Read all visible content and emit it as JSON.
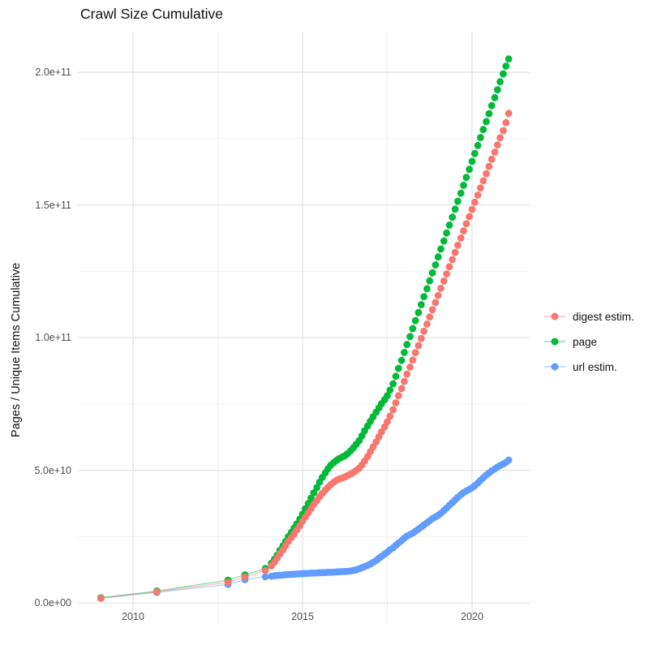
{
  "title": "Crawl Size Cumulative",
  "axes": {
    "y_label": "Pages / Unique Items Cumulative",
    "x_ticks": [
      "2010",
      "2015",
      "2020"
    ],
    "y_ticks": [
      "0.0e+00",
      "5.0e+10",
      "1.0e+11",
      "1.5e+11",
      "2.0e+11"
    ]
  },
  "legend": {
    "entries": [
      {
        "label": "digest estim.",
        "color": "#F8766D"
      },
      {
        "label": "page",
        "color": "#00BA38"
      },
      {
        "label": "url estim.",
        "color": "#619CFF"
      }
    ]
  },
  "chart_data": {
    "type": "scatter",
    "title": "Crawl Size Cumulative",
    "xlabel": "",
    "ylabel": "Pages / Unique Items Cumulative",
    "values_unit": "1e9 pages (billions)",
    "xlim": [
      2008.37,
      2021.7
    ],
    "ylim_billions": [
      -7.6,
      215.3
    ],
    "x_tick_values": [
      2010,
      2015,
      2020
    ],
    "y_tick_values_billions": [
      0,
      50,
      100,
      150,
      200
    ],
    "y_tick_labels": [
      "0.0e+00",
      "5.0e+10",
      "1.0e+11",
      "1.5e+11",
      "2.0e+11"
    ],
    "grid": "major+minor",
    "legend_position": "right",
    "draw_order": [
      "page",
      "url estim.",
      "digest estim."
    ],
    "series": [
      {
        "name": "digest estim.",
        "color": "#F8766D",
        "points": [
          [
            2009.05,
            1.8
          ],
          [
            2010.7,
            4.2
          ],
          [
            2012.8,
            7.8
          ],
          [
            2013.3,
            9.8
          ],
          [
            2013.9,
            12.2
          ],
          [
            2014.08,
            14.0
          ],
          [
            2014.17,
            15.4
          ],
          [
            2014.25,
            16.9
          ],
          [
            2014.33,
            18.5
          ],
          [
            2014.42,
            20.0
          ],
          [
            2014.5,
            21.6
          ],
          [
            2014.58,
            23.2
          ],
          [
            2014.67,
            24.6
          ],
          [
            2014.75,
            26.0
          ],
          [
            2014.83,
            27.5
          ],
          [
            2014.92,
            29.1
          ],
          [
            2015.0,
            30.8
          ],
          [
            2015.08,
            32.4
          ],
          [
            2015.17,
            34.0
          ],
          [
            2015.25,
            35.6
          ],
          [
            2015.33,
            37.1
          ],
          [
            2015.42,
            38.6
          ],
          [
            2015.5,
            40.0
          ],
          [
            2015.58,
            41.3
          ],
          [
            2015.67,
            42.5
          ],
          [
            2015.75,
            43.6
          ],
          [
            2015.83,
            44.6
          ],
          [
            2015.92,
            45.5
          ],
          [
            2016.0,
            46.2
          ],
          [
            2016.08,
            46.7
          ],
          [
            2016.17,
            47.1
          ],
          [
            2016.25,
            47.5
          ],
          [
            2016.33,
            48.0
          ],
          [
            2016.42,
            48.6
          ],
          [
            2016.5,
            49.2
          ],
          [
            2016.58,
            49.9
          ],
          [
            2016.67,
            50.8
          ],
          [
            2016.75,
            52.0
          ],
          [
            2016.83,
            53.5
          ],
          [
            2016.92,
            55.2
          ],
          [
            2017.0,
            57.0
          ],
          [
            2017.08,
            58.8
          ],
          [
            2017.17,
            60.7
          ],
          [
            2017.25,
            62.6
          ],
          [
            2017.33,
            64.5
          ],
          [
            2017.42,
            66.4
          ],
          [
            2017.5,
            68.3
          ],
          [
            2017.58,
            70.4
          ],
          [
            2017.67,
            72.8
          ],
          [
            2017.75,
            75.4
          ],
          [
            2017.83,
            78.1
          ],
          [
            2017.92,
            80.8
          ],
          [
            2018.0,
            83.5
          ],
          [
            2018.08,
            86.2
          ],
          [
            2018.17,
            88.9
          ],
          [
            2018.25,
            91.6
          ],
          [
            2018.33,
            94.3
          ],
          [
            2018.42,
            97.0
          ],
          [
            2018.5,
            99.7
          ],
          [
            2018.58,
            102.4
          ],
          [
            2018.67,
            105.1
          ],
          [
            2018.75,
            107.8
          ],
          [
            2018.83,
            110.5
          ],
          [
            2018.92,
            113.2
          ],
          [
            2019.0,
            115.9
          ],
          [
            2019.08,
            118.6
          ],
          [
            2019.17,
            121.3
          ],
          [
            2019.25,
            124.0
          ],
          [
            2019.33,
            126.7
          ],
          [
            2019.42,
            129.4
          ],
          [
            2019.5,
            132.1
          ],
          [
            2019.58,
            134.8
          ],
          [
            2019.67,
            137.5
          ],
          [
            2019.75,
            140.2
          ],
          [
            2019.83,
            142.9
          ],
          [
            2019.92,
            145.6
          ],
          [
            2020.0,
            148.3
          ],
          [
            2020.08,
            151.0
          ],
          [
            2020.17,
            153.7
          ],
          [
            2020.25,
            156.4
          ],
          [
            2020.33,
            159.1
          ],
          [
            2020.42,
            161.8
          ],
          [
            2020.5,
            164.5
          ],
          [
            2020.58,
            167.2
          ],
          [
            2020.67,
            169.9
          ],
          [
            2020.75,
            172.6
          ],
          [
            2020.83,
            175.3
          ],
          [
            2020.92,
            178.0
          ],
          [
            2021.0,
            181.0
          ],
          [
            2021.08,
            184.5
          ]
        ]
      },
      {
        "name": "page",
        "color": "#00BA38",
        "points": [
          [
            2009.05,
            2.0
          ],
          [
            2010.7,
            4.5
          ],
          [
            2012.8,
            8.6
          ],
          [
            2013.3,
            10.6
          ],
          [
            2013.9,
            13.0
          ],
          [
            2014.08,
            15.0
          ],
          [
            2014.17,
            16.5
          ],
          [
            2014.25,
            18.0
          ],
          [
            2014.33,
            19.8
          ],
          [
            2014.42,
            21.5
          ],
          [
            2014.5,
            23.2
          ],
          [
            2014.58,
            25.0
          ],
          [
            2014.67,
            26.6
          ],
          [
            2014.75,
            28.2
          ],
          [
            2014.83,
            29.8
          ],
          [
            2014.92,
            31.6
          ],
          [
            2015.0,
            33.5
          ],
          [
            2015.08,
            35.5
          ],
          [
            2015.17,
            37.5
          ],
          [
            2015.25,
            39.5
          ],
          [
            2015.33,
            41.5
          ],
          [
            2015.42,
            43.5
          ],
          [
            2015.5,
            45.5
          ],
          [
            2015.58,
            47.3
          ],
          [
            2015.67,
            49.0
          ],
          [
            2015.75,
            50.6
          ],
          [
            2015.83,
            51.9
          ],
          [
            2015.92,
            52.9
          ],
          [
            2016.0,
            53.7
          ],
          [
            2016.08,
            54.4
          ],
          [
            2016.17,
            55.0
          ],
          [
            2016.25,
            55.5
          ],
          [
            2016.33,
            56.3
          ],
          [
            2016.42,
            57.4
          ],
          [
            2016.5,
            58.5
          ],
          [
            2016.58,
            59.8
          ],
          [
            2016.67,
            61.2
          ],
          [
            2016.75,
            63.0
          ],
          [
            2016.83,
            64.9
          ],
          [
            2016.92,
            66.7
          ],
          [
            2017.0,
            68.5
          ],
          [
            2017.08,
            70.2
          ],
          [
            2017.17,
            71.9
          ],
          [
            2017.25,
            73.5
          ],
          [
            2017.33,
            75.1
          ],
          [
            2017.42,
            76.6
          ],
          [
            2017.5,
            78.1
          ],
          [
            2017.58,
            80.2
          ],
          [
            2017.67,
            82.6
          ],
          [
            2017.75,
            85.4
          ],
          [
            2017.83,
            88.4
          ],
          [
            2017.92,
            91.4
          ],
          [
            2018.0,
            94.4
          ],
          [
            2018.08,
            97.4
          ],
          [
            2018.17,
            100.4
          ],
          [
            2018.25,
            103.4
          ],
          [
            2018.33,
            106.4
          ],
          [
            2018.42,
            109.4
          ],
          [
            2018.5,
            112.4
          ],
          [
            2018.58,
            115.4
          ],
          [
            2018.67,
            118.4
          ],
          [
            2018.75,
            121.4
          ],
          [
            2018.83,
            124.4
          ],
          [
            2018.92,
            127.4
          ],
          [
            2019.0,
            130.4
          ],
          [
            2019.08,
            133.4
          ],
          [
            2019.17,
            136.4
          ],
          [
            2019.25,
            139.4
          ],
          [
            2019.33,
            142.4
          ],
          [
            2019.42,
            145.4
          ],
          [
            2019.5,
            148.4
          ],
          [
            2019.58,
            151.4
          ],
          [
            2019.67,
            154.4
          ],
          [
            2019.75,
            157.4
          ],
          [
            2019.83,
            160.4
          ],
          [
            2019.92,
            163.4
          ],
          [
            2020.0,
            166.4
          ],
          [
            2020.08,
            169.4
          ],
          [
            2020.17,
            172.4
          ],
          [
            2020.25,
            175.4
          ],
          [
            2020.33,
            178.4
          ],
          [
            2020.42,
            181.4
          ],
          [
            2020.5,
            184.4
          ],
          [
            2020.58,
            187.4
          ],
          [
            2020.67,
            190.4
          ],
          [
            2020.75,
            193.4
          ],
          [
            2020.83,
            196.4
          ],
          [
            2020.92,
            199.4
          ],
          [
            2021.0,
            202.3
          ],
          [
            2021.08,
            205.0
          ]
        ]
      },
      {
        "name": "url estim.",
        "color": "#619CFF",
        "points": [
          [
            2009.05,
            1.8
          ],
          [
            2010.7,
            4.0
          ],
          [
            2012.8,
            7.0
          ],
          [
            2013.3,
            8.8
          ],
          [
            2013.9,
            9.9
          ],
          [
            2014.08,
            10.1
          ],
          [
            2014.17,
            10.25
          ],
          [
            2014.25,
            10.35
          ],
          [
            2014.33,
            10.45
          ],
          [
            2014.42,
            10.55
          ],
          [
            2014.5,
            10.65
          ],
          [
            2014.58,
            10.72
          ],
          [
            2014.67,
            10.8
          ],
          [
            2014.75,
            10.87
          ],
          [
            2014.83,
            10.93
          ],
          [
            2014.92,
            11.0
          ],
          [
            2015.0,
            11.05
          ],
          [
            2015.08,
            11.1
          ],
          [
            2015.17,
            11.17
          ],
          [
            2015.25,
            11.22
          ],
          [
            2015.33,
            11.28
          ],
          [
            2015.42,
            11.33
          ],
          [
            2015.5,
            11.38
          ],
          [
            2015.58,
            11.43
          ],
          [
            2015.67,
            11.48
          ],
          [
            2015.75,
            11.53
          ],
          [
            2015.83,
            11.58
          ],
          [
            2015.92,
            11.64
          ],
          [
            2016.0,
            11.7
          ],
          [
            2016.08,
            11.76
          ],
          [
            2016.17,
            11.82
          ],
          [
            2016.25,
            11.88
          ],
          [
            2016.33,
            11.95
          ],
          [
            2016.42,
            12.05
          ],
          [
            2016.5,
            12.2
          ],
          [
            2016.58,
            12.5
          ],
          [
            2016.67,
            12.9
          ],
          [
            2016.75,
            13.3
          ],
          [
            2016.83,
            13.7
          ],
          [
            2016.92,
            14.2
          ],
          [
            2017.0,
            14.7
          ],
          [
            2017.08,
            15.3
          ],
          [
            2017.17,
            16.0
          ],
          [
            2017.25,
            16.8
          ],
          [
            2017.33,
            17.6
          ],
          [
            2017.42,
            18.4
          ],
          [
            2017.5,
            19.2
          ],
          [
            2017.58,
            20.0
          ],
          [
            2017.67,
            20.8
          ],
          [
            2017.75,
            21.7
          ],
          [
            2017.83,
            22.6
          ],
          [
            2017.92,
            23.5
          ],
          [
            2018.0,
            24.4
          ],
          [
            2018.08,
            25.2
          ],
          [
            2018.17,
            25.8
          ],
          [
            2018.25,
            26.3
          ],
          [
            2018.33,
            27.0
          ],
          [
            2018.42,
            27.8
          ],
          [
            2018.5,
            28.6
          ],
          [
            2018.58,
            29.4
          ],
          [
            2018.67,
            30.2
          ],
          [
            2018.75,
            31.0
          ],
          [
            2018.83,
            31.8
          ],
          [
            2018.92,
            32.4
          ],
          [
            2019.0,
            33.0
          ],
          [
            2019.08,
            33.8
          ],
          [
            2019.17,
            34.8
          ],
          [
            2019.25,
            35.8
          ],
          [
            2019.33,
            36.8
          ],
          [
            2019.42,
            37.8
          ],
          [
            2019.5,
            38.8
          ],
          [
            2019.58,
            39.8
          ],
          [
            2019.67,
            40.8
          ],
          [
            2019.75,
            41.6
          ],
          [
            2019.83,
            42.2
          ],
          [
            2019.92,
            42.8
          ],
          [
            2020.0,
            43.4
          ],
          [
            2020.08,
            44.2
          ],
          [
            2020.17,
            45.2
          ],
          [
            2020.25,
            46.2
          ],
          [
            2020.33,
            47.2
          ],
          [
            2020.42,
            48.2
          ],
          [
            2020.5,
            49.0
          ],
          [
            2020.58,
            49.8
          ],
          [
            2020.67,
            50.5
          ],
          [
            2020.75,
            51.2
          ],
          [
            2020.83,
            51.8
          ],
          [
            2020.92,
            52.4
          ],
          [
            2021.0,
            53.0
          ],
          [
            2021.08,
            53.8
          ]
        ]
      }
    ]
  }
}
